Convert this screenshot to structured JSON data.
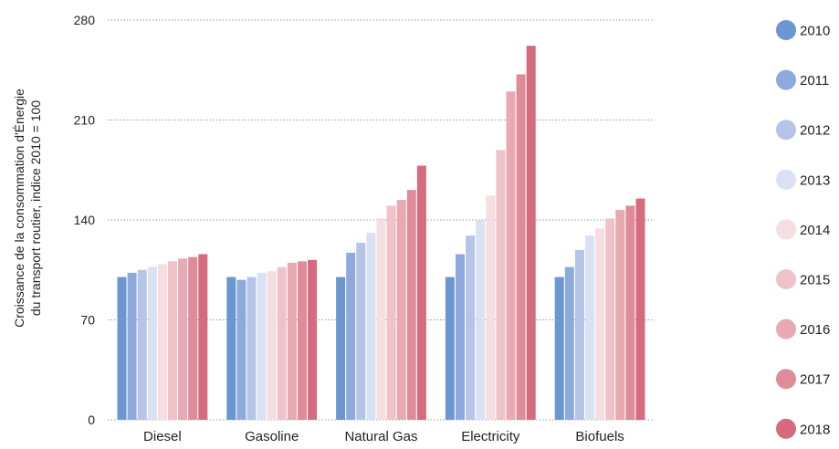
{
  "chart_data": {
    "type": "bar",
    "ylabel_lines": [
      "Croissance de la consommation d'Énergie",
      "du transport routier, indice 2010 = 100"
    ],
    "categories": [
      "Diesel",
      "Gasoline",
      "Natural Gas",
      "Electricity",
      "Biofuels"
    ],
    "ylim": [
      0,
      280
    ],
    "yticks": [
      0,
      70,
      140,
      210,
      280
    ],
    "grid": true,
    "legend_position": "right",
    "series": [
      {
        "name": "2010",
        "color": "#6b96cf",
        "values": [
          100,
          100,
          100,
          100,
          100
        ]
      },
      {
        "name": "2011",
        "color": "#8eaadc",
        "values": [
          103,
          98,
          117,
          116,
          107
        ]
      },
      {
        "name": "2012",
        "color": "#b6c5e7",
        "values": [
          105,
          100,
          124,
          129,
          119
        ]
      },
      {
        "name": "2013",
        "color": "#d9e1f3",
        "values": [
          107,
          103,
          131,
          140,
          129
        ]
      },
      {
        "name": "2014",
        "color": "#f6dde1",
        "values": [
          109,
          104,
          141,
          157,
          134
        ]
      },
      {
        "name": "2015",
        "color": "#efc2c9",
        "values": [
          111,
          107,
          150,
          189,
          141
        ]
      },
      {
        "name": "2016",
        "color": "#e8a9b3",
        "values": [
          113,
          110,
          154,
          230,
          147
        ]
      },
      {
        "name": "2017",
        "color": "#df8c9a",
        "values": [
          114,
          111,
          161,
          242,
          150
        ]
      },
      {
        "name": "2018",
        "color": "#d66a7e",
        "values": [
          116,
          112,
          178,
          262,
          155
        ]
      }
    ]
  }
}
